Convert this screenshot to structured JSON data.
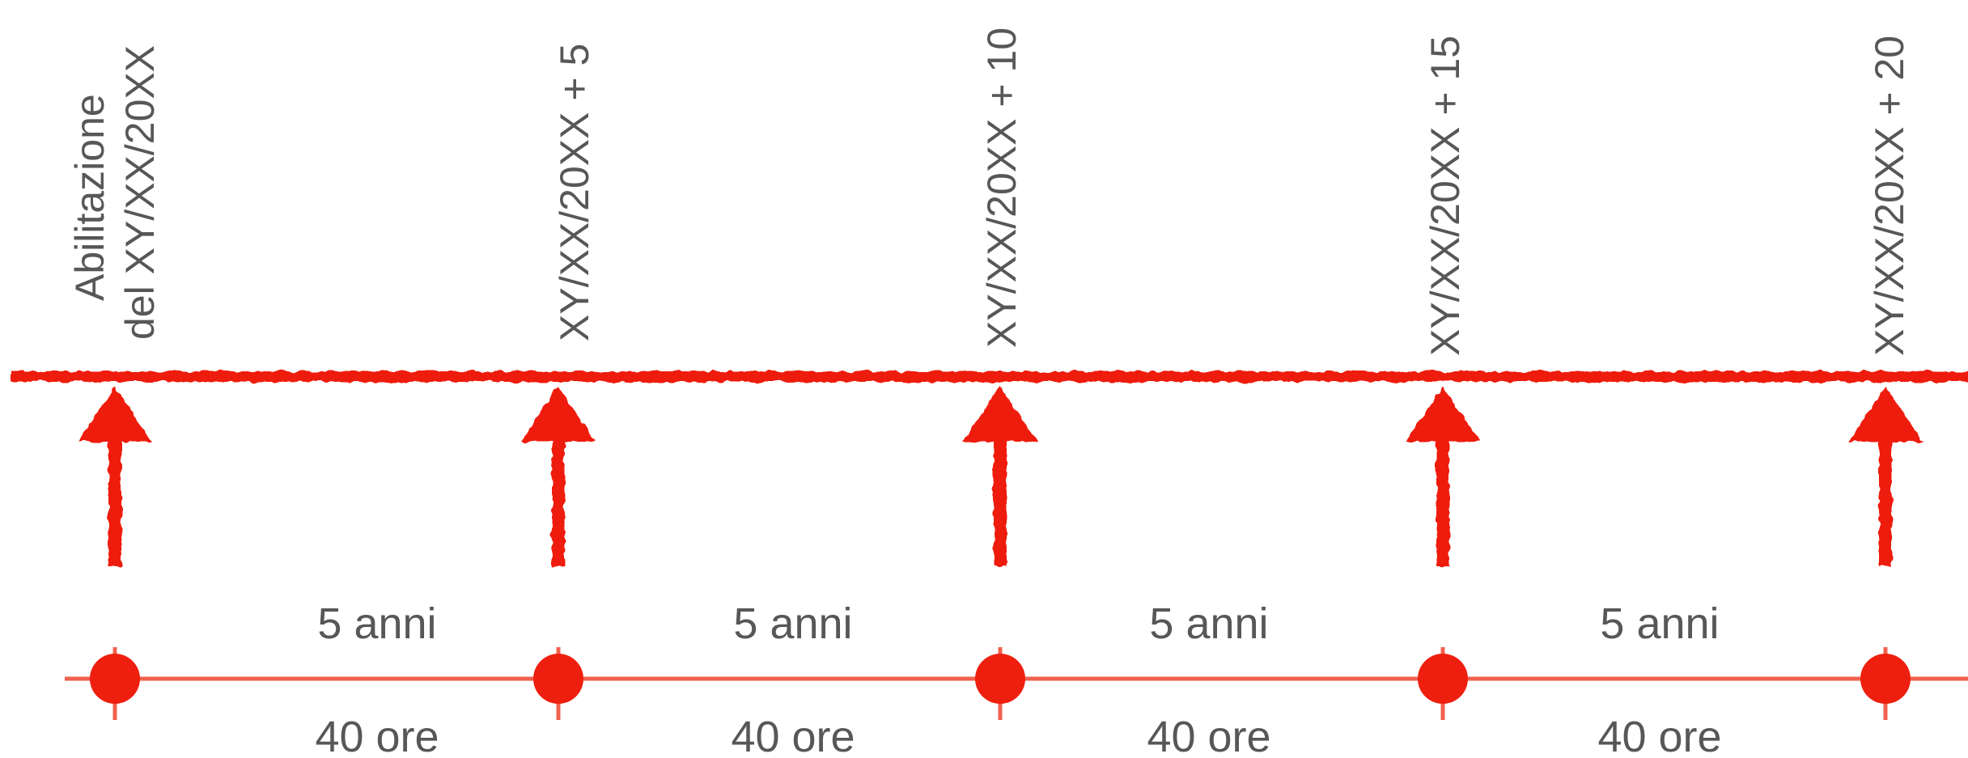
{
  "timeline": {
    "accent_color": "#ee1f0e",
    "line_color": "#f1604f",
    "text_color": "#575757",
    "milestones": [
      {
        "label_line1": "Abilitazione",
        "label_line2": "del XY/XX/20XX"
      },
      {
        "label_line1": "XY/XX/20XX + 5"
      },
      {
        "label_line1": "XY/XX/20XX + 10"
      },
      {
        "label_line1": "XY/XX/20XX + 15"
      },
      {
        "label_line1": "XY/XX/20XX + 20"
      }
    ],
    "intervals": [
      {
        "duration": "5 anni",
        "hours": "40 ore"
      },
      {
        "duration": "5 anni",
        "hours": "40 ore"
      },
      {
        "duration": "5 anni",
        "hours": "40 ore"
      },
      {
        "duration": "5 anni",
        "hours": "40 ore"
      }
    ]
  }
}
